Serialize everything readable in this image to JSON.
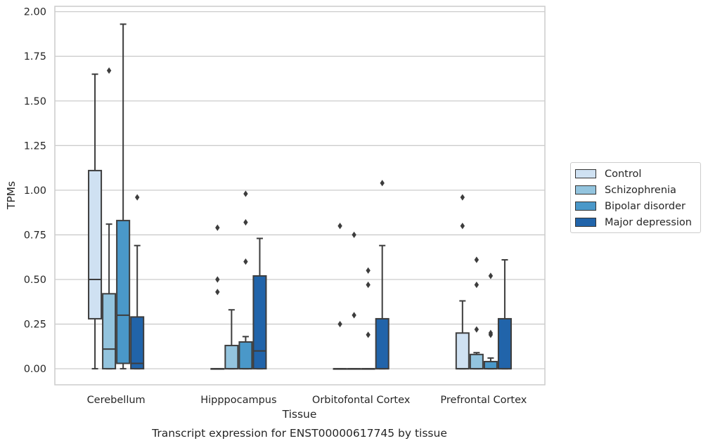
{
  "chart_data": {
    "type": "box",
    "title": "Transcript expression for ENST00000617745 by tissue",
    "xlabel": "Tissue",
    "ylabel": "TPMs",
    "ylim": [
      -0.09,
      2.03
    ],
    "yticks": [
      "0.00",
      "0.25",
      "0.50",
      "0.75",
      "1.00",
      "1.25",
      "1.50",
      "1.75",
      "2.00"
    ],
    "grid": "horizontal",
    "legend_placement": "right",
    "categories": [
      "Cerebellum",
      "Hipppocampus",
      "Orbitofontal Cortex",
      "Prefrontal Cortex"
    ],
    "series": [
      {
        "name": "Control",
        "color": "#cfe1f2",
        "boxes": [
          {
            "whisker_low": 0.0,
            "q1": 0.28,
            "median": 0.5,
            "q3": 1.11,
            "whisker_high": 1.65,
            "outliers": []
          },
          {
            "whisker_low": 0.0,
            "q1": 0.0,
            "median": 0.0,
            "q3": 0.0,
            "whisker_high": 0.0,
            "outliers": [
              0.43,
              0.5,
              0.79
            ]
          },
          {
            "whisker_low": 0.0,
            "q1": 0.0,
            "median": 0.0,
            "q3": 0.0,
            "whisker_high": 0.0,
            "outliers": [
              0.25,
              0.8
            ]
          },
          {
            "whisker_low": 0.0,
            "q1": 0.0,
            "median": 0.0,
            "q3": 0.2,
            "whisker_high": 0.38,
            "outliers": [
              0.8,
              0.96
            ]
          }
        ]
      },
      {
        "name": "Schizophrenia",
        "color": "#93c4de",
        "boxes": [
          {
            "whisker_low": 0.0,
            "q1": 0.0,
            "median": 0.11,
            "q3": 0.42,
            "whisker_high": 0.81,
            "outliers": [
              1.67
            ]
          },
          {
            "whisker_low": 0.0,
            "q1": 0.0,
            "median": 0.0,
            "q3": 0.13,
            "whisker_high": 0.33,
            "outliers": []
          },
          {
            "whisker_low": 0.0,
            "q1": 0.0,
            "median": 0.0,
            "q3": 0.0,
            "whisker_high": 0.0,
            "outliers": [
              0.3,
              0.75
            ]
          },
          {
            "whisker_low": 0.0,
            "q1": 0.0,
            "median": 0.0,
            "q3": 0.08,
            "whisker_high": 0.09,
            "outliers": [
              0.22,
              0.47,
              0.61
            ]
          }
        ]
      },
      {
        "name": "Bipolar disorder",
        "color": "#4a98c9",
        "boxes": [
          {
            "whisker_low": 0.0,
            "q1": 0.03,
            "median": 0.3,
            "q3": 0.83,
            "whisker_high": 1.93,
            "outliers": []
          },
          {
            "whisker_low": 0.0,
            "q1": 0.0,
            "median": 0.0,
            "q3": 0.15,
            "whisker_high": 0.18,
            "outliers": [
              0.6,
              0.82,
              0.98
            ]
          },
          {
            "whisker_low": 0.0,
            "q1": 0.0,
            "median": 0.0,
            "q3": 0.0,
            "whisker_high": 0.0,
            "outliers": [
              0.19,
              0.47,
              0.55
            ]
          },
          {
            "whisker_low": 0.0,
            "q1": 0.0,
            "median": 0.0,
            "q3": 0.04,
            "whisker_high": 0.06,
            "outliers": [
              0.19,
              0.2,
              0.52
            ]
          }
        ]
      },
      {
        "name": "Major depression",
        "color": "#2164aa",
        "boxes": [
          {
            "whisker_low": 0.0,
            "q1": 0.0,
            "median": 0.03,
            "q3": 0.29,
            "whisker_high": 0.69,
            "outliers": [
              0.96
            ]
          },
          {
            "whisker_low": 0.0,
            "q1": 0.0,
            "median": 0.1,
            "q3": 0.52,
            "whisker_high": 0.73,
            "outliers": []
          },
          {
            "whisker_low": 0.0,
            "q1": 0.0,
            "median": 0.0,
            "q3": 0.28,
            "whisker_high": 0.69,
            "outliers": [
              1.04
            ]
          },
          {
            "whisker_low": 0.0,
            "q1": 0.0,
            "median": 0.0,
            "q3": 0.28,
            "whisker_high": 0.61,
            "outliers": []
          }
        ]
      }
    ]
  }
}
